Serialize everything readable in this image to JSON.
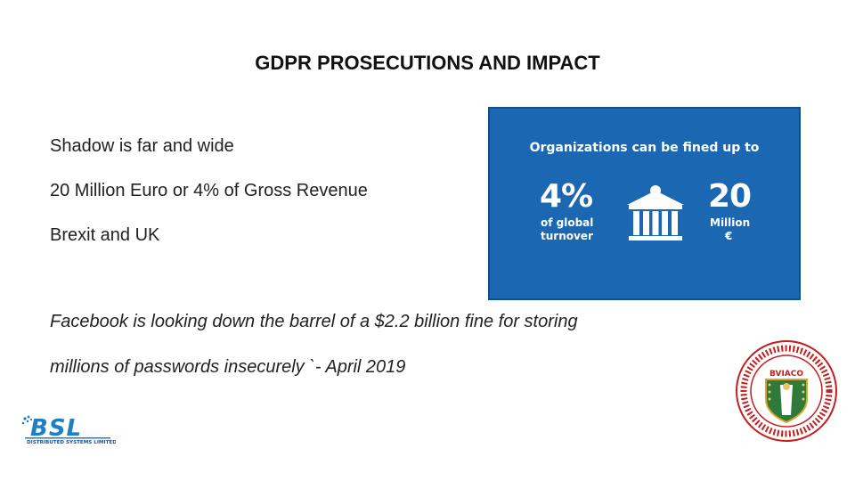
{
  "slide": {
    "title": "GDPR PROSECUTIONS AND IMPACT",
    "bullets": [
      "Shadow is far and wide",
      "20 Million Euro or 4% of Gross Revenue",
      "Brexit and UK"
    ],
    "quote_lines": [
      "Facebook is looking down the barrel of a $2.2 billion fine for storing",
      "millions of passwords insecurely `- April 2019"
    ]
  },
  "graphic": {
    "heading": "Organizations can be fined up to",
    "left_value": "4%",
    "left_caption_1": "of global",
    "left_caption_2": "turnover",
    "right_value": "20",
    "right_caption_1": "Million",
    "right_caption_2": "€",
    "icon": "bank-building-icon",
    "background_color": "#1b67b2"
  },
  "logos": {
    "bsl_text": "BSL",
    "bsl_subtitle": "DISTRIBUTED SYSTEMS LIMITED",
    "seal_text": "BVIACO"
  }
}
